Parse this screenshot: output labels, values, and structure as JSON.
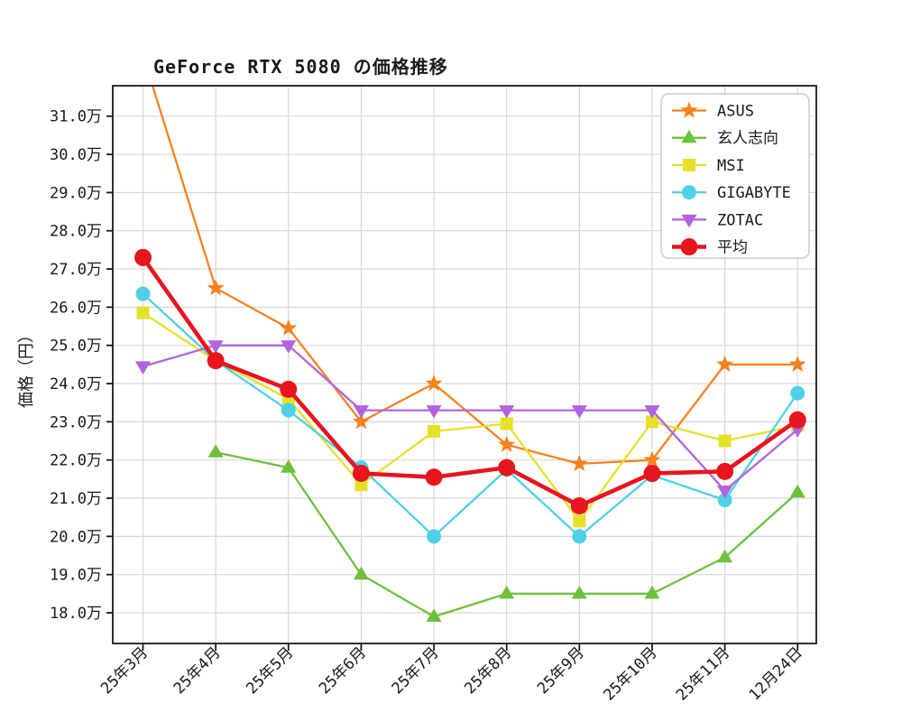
{
  "title": "GeForce RTX 5080 の価格推移",
  "chart_data": {
    "type": "line",
    "title": "GeForce RTX 5080 の価格推移",
    "xlabel": "",
    "ylabel": "価格（円）",
    "unit": "万円",
    "categories": [
      "25年3月",
      "25年4月",
      "25年5月",
      "25年6月",
      "25年7月",
      "25年8月",
      "25年9月",
      "25年10月",
      "25年11月",
      "12月24日"
    ],
    "y_axis": {
      "tick_min": 18.0,
      "tick_max": 31.0,
      "tick_step": 1.0,
      "tick_suffix": "万",
      "ylim": [
        17.2,
        31.8
      ]
    },
    "grid": true,
    "legend": {
      "position": "upper-right",
      "entries": [
        "ASUS",
        "玄人志向",
        "MSI",
        "GIGABYTE",
        "ZOTAC",
        "平均"
      ]
    },
    "series": [
      {
        "name": "ASUS",
        "color": "#f5821f",
        "marker": "star",
        "marker_size": 10,
        "line_width": 2.3,
        "values": [
          32.6,
          26.5,
          25.45,
          23.0,
          24.0,
          22.4,
          21.9,
          22.0,
          24.5,
          24.5
        ]
      },
      {
        "name": "玄人志向",
        "color": "#6fc13c",
        "marker": "triangle_up",
        "marker_size": 9,
        "line_width": 2.3,
        "values": [
          null,
          22.2,
          21.8,
          19.0,
          17.9,
          18.5,
          18.5,
          18.5,
          19.45,
          21.15
        ]
      },
      {
        "name": "MSI",
        "color": "#e6e028",
        "marker": "square",
        "marker_size": 7,
        "line_width": 2.3,
        "values": [
          25.85,
          24.6,
          23.6,
          21.35,
          22.75,
          22.95,
          20.4,
          23.0,
          22.5,
          22.9
        ]
      },
      {
        "name": "GIGABYTE",
        "color": "#4fd0e7",
        "marker": "circle",
        "marker_size": 8,
        "line_width": 2.3,
        "values": [
          26.35,
          24.6,
          23.3,
          21.8,
          20.0,
          21.75,
          20.0,
          21.6,
          20.95,
          23.75
        ]
      },
      {
        "name": "ZOTAC",
        "color": "#b164dd",
        "marker": "triangle_down",
        "marker_size": 9,
        "line_width": 2.3,
        "values": [
          24.45,
          25.0,
          25.0,
          23.3,
          23.3,
          23.3,
          23.3,
          23.3,
          21.2,
          22.8
        ]
      },
      {
        "name": "平均",
        "color": "#e8141e",
        "marker": "circle",
        "marker_size": 9.5,
        "line_width": 4.6,
        "values": [
          27.3,
          24.6,
          23.85,
          21.65,
          21.55,
          21.8,
          20.8,
          21.65,
          21.7,
          23.05
        ]
      }
    ]
  }
}
